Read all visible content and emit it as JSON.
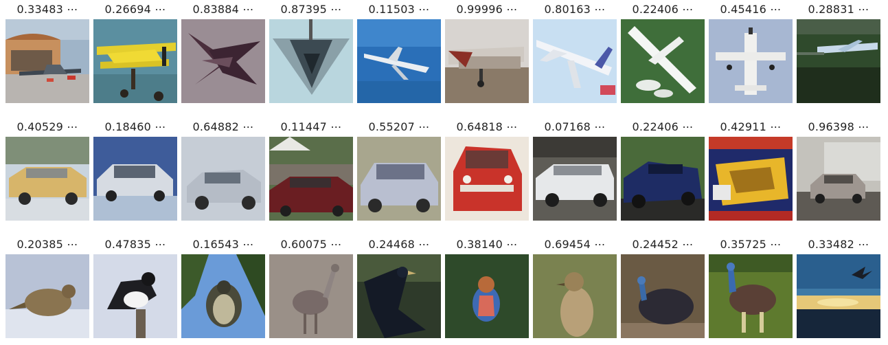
{
  "rows": [
    {
      "category": "airplane",
      "cells": [
        {
          "score": "0.33483 ⋯",
          "icon": "airplane-hangar-photo"
        },
        {
          "score": "0.26694 ⋯",
          "icon": "yellow-biplane-photo"
        },
        {
          "score": "0.83884 ⋯",
          "icon": "jet-top-view-photo"
        },
        {
          "score": "0.87395 ⋯",
          "icon": "stealth-jet-photo"
        },
        {
          "score": "0.11503 ⋯",
          "icon": "jet-in-blue-sky-photo"
        },
        {
          "score": "0.99996 ⋯",
          "icon": "plane-on-ground-photo"
        },
        {
          "score": "0.80163 ⋯",
          "icon": "white-jet-photo"
        },
        {
          "score": "0.22406 ⋯",
          "icon": "seaplane-photo"
        },
        {
          "score": "0.45416 ⋯",
          "icon": "propeller-plane-photo"
        },
        {
          "score": "0.28831 ⋯",
          "icon": "plane-landing-photo"
        }
      ]
    },
    {
      "category": "automobile",
      "cells": [
        {
          "score": "0.40529 ⋯",
          "icon": "yellow-car-photo"
        },
        {
          "score": "0.18460 ⋯",
          "icon": "silver-sedan-photo"
        },
        {
          "score": "0.64882 ⋯",
          "icon": "silver-coupe-photo"
        },
        {
          "score": "0.11447 ⋯",
          "icon": "red-car-parking-photo"
        },
        {
          "score": "0.55207 ⋯",
          "icon": "silver-wagon-photo"
        },
        {
          "score": "0.64818 ⋯",
          "icon": "red-mini-photo"
        },
        {
          "score": "0.07168 ⋯",
          "icon": "white-convertible-photo"
        },
        {
          "score": "0.22406 ⋯",
          "icon": "blue-convertible-photo"
        },
        {
          "score": "0.42911 ⋯",
          "icon": "magazine-cover-car-photo"
        },
        {
          "score": "0.96398 ⋯",
          "icon": "truck-and-car-photo"
        }
      ]
    },
    {
      "category": "bird",
      "cells": [
        {
          "score": "0.20385 ⋯",
          "icon": "bird-in-snow-photo"
        },
        {
          "score": "0.47835 ⋯",
          "icon": "perched-bird-photo"
        },
        {
          "score": "0.16543 ⋯",
          "icon": "bird-in-tree-photo"
        },
        {
          "score": "0.60075 ⋯",
          "icon": "ostrich-photo"
        },
        {
          "score": "0.24468 ⋯",
          "icon": "dark-bird-photo"
        },
        {
          "score": "0.38140 ⋯",
          "icon": "colorful-bird-photo"
        },
        {
          "score": "0.69454 ⋯",
          "icon": "sparrow-photo"
        },
        {
          "score": "0.24452 ⋯",
          "icon": "cassowary-photo"
        },
        {
          "score": "0.35725 ⋯",
          "icon": "cassowary-grass-photo"
        },
        {
          "score": "0.33482 ⋯",
          "icon": "bird-over-sunset-photo"
        }
      ]
    }
  ]
}
